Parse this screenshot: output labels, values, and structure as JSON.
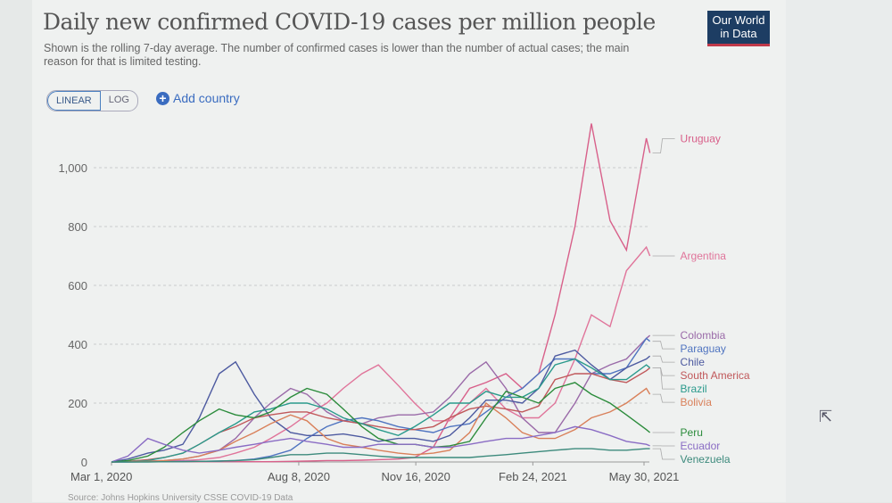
{
  "header": {
    "title": "Daily new confirmed COVID-19 cases per million people",
    "subtitle": "Shown is the rolling 7-day average. The number of confirmed cases is lower than the number of actual cases; the main reason for that is limited testing.",
    "logo": "Our World in Data"
  },
  "controls": {
    "linear": "LINEAR",
    "log": "LOG",
    "add_country": "Add country",
    "selected_scale": "linear"
  },
  "source": "Source: Johns Hopkins University CSSE COVID-19 Data",
  "chart_data": {
    "type": "line",
    "title": "Daily new confirmed COVID-19 cases per million people",
    "ylim": [
      0,
      1150
    ],
    "yticks": [
      0,
      200,
      400,
      600,
      800,
      1000
    ],
    "ytick_labels": [
      "0",
      "200",
      "400",
      "600",
      "800",
      "1,000"
    ],
    "xticks": [
      "2020-03-01",
      "2020-08-08",
      "2020-11-16",
      "2021-02-24",
      "2021-05-30"
    ],
    "xtick_labels": [
      "Mar 1, 2020",
      "Aug 8, 2020",
      "Nov 16, 2020",
      "Feb 24, 2021",
      "May 30, 2021"
    ],
    "grid": "horizontal dashed",
    "x": [
      "2020-03-01",
      "2020-03-15",
      "2020-04-01",
      "2020-04-15",
      "2020-05-01",
      "2020-05-15",
      "2020-06-01",
      "2020-06-15",
      "2020-07-01",
      "2020-07-15",
      "2020-08-01",
      "2020-08-15",
      "2020-09-01",
      "2020-09-15",
      "2020-10-01",
      "2020-10-15",
      "2020-11-01",
      "2020-11-15",
      "2020-12-01",
      "2020-12-15",
      "2021-01-01",
      "2021-01-15",
      "2021-02-01",
      "2021-02-15",
      "2021-03-01",
      "2021-03-15",
      "2021-04-01",
      "2021-04-15",
      "2021-05-01",
      "2021-05-15",
      "2021-06-01",
      "2021-06-04"
    ],
    "series": [
      {
        "name": "Uruguay",
        "color": "#d8608a",
        "values": [
          0,
          1,
          2,
          1,
          1,
          1,
          1,
          1,
          1,
          1,
          2,
          3,
          5,
          5,
          6,
          8,
          10,
          15,
          50,
          150,
          250,
          270,
          300,
          250,
          300,
          500,
          800,
          1150,
          820,
          720,
          1100,
          1050
        ]
      },
      {
        "name": "Argentina",
        "color": "#e0749a",
        "values": [
          0,
          1,
          2,
          3,
          5,
          8,
          15,
          30,
          50,
          80,
          120,
          160,
          200,
          250,
          300,
          330,
          260,
          200,
          140,
          140,
          200,
          250,
          180,
          150,
          150,
          200,
          350,
          500,
          460,
          650,
          730,
          700
        ]
      },
      {
        "name": "Colombia",
        "color": "#9a6aa8",
        "values": [
          0,
          1,
          3,
          5,
          10,
          20,
          40,
          80,
          150,
          200,
          250,
          230,
          170,
          140,
          130,
          150,
          160,
          160,
          170,
          220,
          300,
          340,
          250,
          150,
          100,
          100,
          200,
          300,
          330,
          350,
          420,
          430
        ]
      },
      {
        "name": "Paraguay",
        "color": "#4f74c0",
        "values": [
          0,
          0,
          1,
          1,
          2,
          2,
          3,
          5,
          10,
          20,
          40,
          80,
          120,
          140,
          150,
          140,
          120,
          110,
          100,
          120,
          130,
          170,
          220,
          250,
          300,
          350,
          350,
          300,
          300,
          320,
          420,
          410
        ]
      },
      {
        "name": "Chile",
        "color": "#4d5aa0",
        "values": [
          0,
          10,
          30,
          40,
          60,
          150,
          300,
          340,
          230,
          150,
          100,
          90,
          90,
          95,
          85,
          70,
          80,
          80,
          70,
          90,
          150,
          210,
          210,
          200,
          250,
          360,
          380,
          330,
          280,
          320,
          350,
          360
        ]
      },
      {
        "name": "South America",
        "color": "#c0585a",
        "values": [
          0,
          2,
          8,
          15,
          30,
          60,
          100,
          120,
          150,
          160,
          170,
          170,
          150,
          140,
          130,
          120,
          110,
          110,
          120,
          150,
          180,
          190,
          180,
          170,
          190,
          280,
          300,
          300,
          280,
          270,
          310,
          320
        ]
      },
      {
        "name": "Brazil",
        "color": "#2a9a8c",
        "values": [
          0,
          1,
          5,
          15,
          30,
          60,
          100,
          130,
          170,
          180,
          200,
          200,
          180,
          150,
          130,
          110,
          90,
          120,
          160,
          200,
          200,
          240,
          220,
          220,
          250,
          330,
          350,
          320,
          280,
          280,
          330,
          320
        ]
      },
      {
        "name": "Bolivia",
        "color": "#d9805a",
        "values": [
          0,
          1,
          2,
          5,
          10,
          20,
          40,
          70,
          100,
          130,
          160,
          140,
          80,
          60,
          50,
          40,
          30,
          25,
          30,
          40,
          100,
          200,
          150,
          100,
          80,
          80,
          110,
          150,
          170,
          200,
          250,
          230
        ]
      },
      {
        "name": "Peru",
        "color": "#2c8c3c",
        "values": [
          0,
          5,
          20,
          50,
          100,
          140,
          180,
          160,
          150,
          170,
          220,
          250,
          230,
          180,
          120,
          80,
          60,
          60,
          50,
          55,
          70,
          150,
          240,
          220,
          200,
          250,
          270,
          230,
          200,
          160,
          110,
          100
        ]
      },
      {
        "name": "Ecuador",
        "color": "#8a6cc4",
        "values": [
          0,
          20,
          80,
          60,
          40,
          30,
          40,
          50,
          60,
          70,
          80,
          70,
          60,
          50,
          50,
          60,
          60,
          60,
          50,
          50,
          60,
          70,
          80,
          80,
          90,
          100,
          120,
          110,
          90,
          70,
          60,
          55
        ]
      },
      {
        "name": "Venezuela",
        "color": "#3c8a7c",
        "values": [
          0,
          0,
          0,
          1,
          1,
          2,
          3,
          5,
          8,
          15,
          25,
          25,
          30,
          30,
          25,
          20,
          15,
          15,
          15,
          15,
          15,
          20,
          25,
          30,
          35,
          40,
          45,
          45,
          40,
          40,
          45,
          45
        ]
      }
    ]
  }
}
